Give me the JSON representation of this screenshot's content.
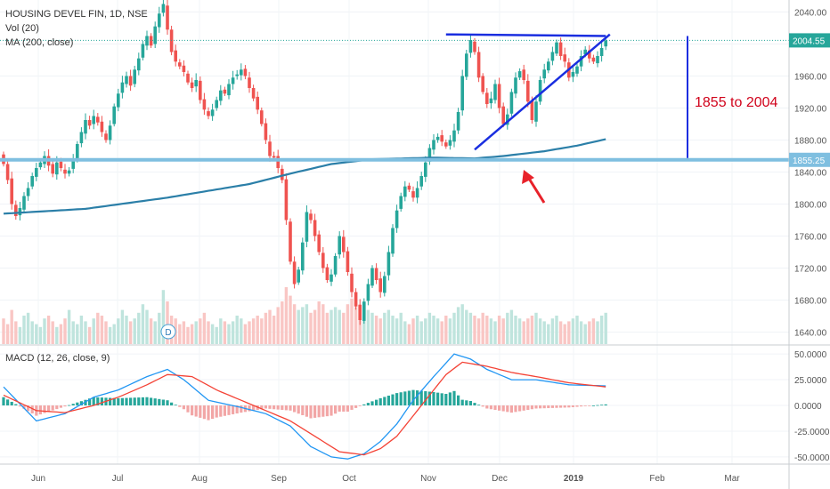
{
  "header": {
    "symbol_line": "HOUSING DEVEL FIN, 1D, NSE",
    "volume_line": "Vol (20)",
    "ma_line": "MA (200, close)",
    "macd_line": "MACD (12, 26, close, 9)"
  },
  "badges": {
    "dividend": "D"
  },
  "colors": {
    "up": "#26a69a",
    "down": "#ef5350",
    "ma": "#2b7fa8",
    "support": "#7fbfe0",
    "triangle": "#1a2ee0",
    "annotation_text": "#d0021b",
    "arrow": "#e8222a",
    "macd_line": "#2196f3",
    "signal_line": "#f44336"
  },
  "annotation": {
    "range_text": "1855 to 2004"
  },
  "chart_data": [
    {
      "type": "candlestick",
      "panel": "price",
      "x_axis_labels": [
        "Jun",
        "Jul",
        "Aug",
        "Sep",
        "Oct",
        "Nov",
        "Dec",
        "2019",
        "Feb",
        "Mar"
      ],
      "y_ticks": [
        1640,
        1680,
        1720,
        1760,
        1800,
        1840,
        1880,
        1920,
        1960,
        2000,
        2040
      ],
      "ylim": [
        1625,
        2055
      ],
      "markers": {
        "current_price": "2004.55",
        "support_level": "1855.25"
      },
      "closes": [
        1850,
        1830,
        1800,
        1785,
        1795,
        1810,
        1820,
        1835,
        1845,
        1852,
        1860,
        1848,
        1838,
        1852,
        1845,
        1838,
        1842,
        1856,
        1875,
        1890,
        1905,
        1898,
        1910,
        1902,
        1890,
        1880,
        1898,
        1922,
        1938,
        1952,
        1960,
        1948,
        1968,
        1982,
        2000,
        2010,
        1998,
        2022,
        2038,
        2050,
        2018,
        1990,
        1978,
        1972,
        1965,
        1952,
        1945,
        1955,
        1930,
        1918,
        1910,
        1918,
        1930,
        1942,
        1938,
        1950,
        1958,
        1962,
        1968,
        1960,
        1945,
        1932,
        1918,
        1900,
        1880,
        1860,
        1858,
        1845,
        1830,
        1780,
        1728,
        1700,
        1718,
        1752,
        1790,
        1780,
        1760,
        1740,
        1720,
        1705,
        1712,
        1735,
        1760,
        1740,
        1715,
        1690,
        1672,
        1655,
        1678,
        1700,
        1720,
        1705,
        1690,
        1710,
        1740,
        1770,
        1792,
        1810,
        1822,
        1818,
        1808,
        1820,
        1835,
        1852,
        1870,
        1880,
        1884,
        1878,
        1872,
        1880,
        1892,
        1915,
        1960,
        1988,
        2005,
        1990,
        1958,
        1940,
        1925,
        1932,
        1950,
        1920,
        1900,
        1912,
        1940,
        1958,
        1966,
        1955,
        1928,
        1905,
        1928,
        1955,
        1968,
        1978,
        1990,
        2002,
        1985,
        1978,
        1958,
        1965,
        1972,
        1985,
        1993,
        1982,
        1978,
        1985,
        1995,
        2004.55
      ],
      "ma200": [
        {
          "i": 0,
          "v": 1788
        },
        {
          "i": 20,
          "v": 1794
        },
        {
          "i": 40,
          "v": 1808
        },
        {
          "i": 60,
          "v": 1825
        },
        {
          "i": 70,
          "v": 1838
        },
        {
          "i": 80,
          "v": 1850
        },
        {
          "i": 90,
          "v": 1856
        },
        {
          "i": 105,
          "v": 1858
        },
        {
          "i": 115,
          "v": 1857
        },
        {
          "i": 122,
          "v": 1860
        },
        {
          "i": 132,
          "v": 1866
        },
        {
          "i": 140,
          "v": 1873
        },
        {
          "i": 147,
          "v": 1881
        }
      ],
      "volume": {
        "label": "Vol (20)",
        "relative_values": [
          0.45,
          0.35,
          0.6,
          0.4,
          0.3,
          0.5,
          0.55,
          0.4,
          0.35,
          0.3,
          0.45,
          0.5,
          0.4,
          0.3,
          0.35,
          0.45,
          0.6,
          0.4,
          0.35,
          0.5,
          0.4,
          0.3,
          0.45,
          0.55,
          0.5,
          0.4,
          0.3,
          0.35,
          0.45,
          0.6,
          0.5,
          0.4,
          0.45,
          0.55,
          0.7,
          0.6,
          0.45,
          0.4,
          0.55,
          0.95,
          0.75,
          0.5,
          0.45,
          0.35,
          0.4,
          0.3,
          0.35,
          0.4,
          0.45,
          0.55,
          0.4,
          0.35,
          0.3,
          0.45,
          0.4,
          0.35,
          0.4,
          0.5,
          0.45,
          0.35,
          0.4,
          0.45,
          0.5,
          0.45,
          0.55,
          0.6,
          0.5,
          0.65,
          0.75,
          1.0,
          0.85,
          0.7,
          0.6,
          0.65,
          0.7,
          0.55,
          0.6,
          0.75,
          0.7,
          0.55,
          0.6,
          0.65,
          0.6,
          0.55,
          0.7,
          0.8,
          0.65,
          0.7,
          0.75,
          0.6,
          0.55,
          0.5,
          0.45,
          0.55,
          0.6,
          0.5,
          0.45,
          0.55,
          0.4,
          0.35,
          0.45,
          0.5,
          0.4,
          0.45,
          0.55,
          0.5,
          0.45,
          0.4,
          0.5,
          0.45,
          0.55,
          0.65,
          0.7,
          0.6,
          0.55,
          0.5,
          0.45,
          0.55,
          0.5,
          0.45,
          0.4,
          0.5,
          0.45,
          0.55,
          0.6,
          0.5,
          0.45,
          0.4,
          0.45,
          0.5,
          0.55,
          0.45,
          0.4,
          0.35,
          0.45,
          0.5,
          0.4,
          0.35,
          0.4,
          0.45,
          0.5,
          0.4,
          0.35,
          0.4,
          0.45,
          0.4,
          0.5,
          0.55
        ]
      },
      "trendlines": [
        {
          "name": "resistance",
          "from": {
            "i": 108,
            "v": 2012
          },
          "to": {
            "i": 147,
            "v": 2010
          }
        },
        {
          "name": "rising-support",
          "from": {
            "i": 115,
            "v": 1868
          },
          "to": {
            "i": 148,
            "v": 2012
          }
        },
        {
          "name": "support-level",
          "value": 1855.25
        }
      ]
    },
    {
      "type": "line",
      "panel": "macd",
      "y_ticks": [
        50,
        25,
        0,
        -25,
        -50
      ],
      "y_tick_labels": [
        "50.0000",
        "25.0000",
        "0.0000",
        "-25.0000",
        "-50.0000"
      ],
      "ylim": [
        -57,
        57
      ],
      "series": [
        {
          "name": "macd",
          "points": [
            {
              "i": 0,
              "v": 18
            },
            {
              "i": 8,
              "v": -15
            },
            {
              "i": 15,
              "v": -8
            },
            {
              "i": 22,
              "v": 8
            },
            {
              "i": 28,
              "v": 15
            },
            {
              "i": 35,
              "v": 28
            },
            {
              "i": 40,
              "v": 35
            },
            {
              "i": 44,
              "v": 25
            },
            {
              "i": 50,
              "v": 5
            },
            {
              "i": 58,
              "v": -2
            },
            {
              "i": 64,
              "v": -8
            },
            {
              "i": 70,
              "v": -20
            },
            {
              "i": 75,
              "v": -40
            },
            {
              "i": 80,
              "v": -50
            },
            {
              "i": 84,
              "v": -52
            },
            {
              "i": 88,
              "v": -47
            },
            {
              "i": 92,
              "v": -35
            },
            {
              "i": 96,
              "v": -18
            },
            {
              "i": 100,
              "v": 5
            },
            {
              "i": 105,
              "v": 28
            },
            {
              "i": 110,
              "v": 50
            },
            {
              "i": 114,
              "v": 45
            },
            {
              "i": 118,
              "v": 35
            },
            {
              "i": 124,
              "v": 25
            },
            {
              "i": 130,
              "v": 25
            },
            {
              "i": 138,
              "v": 20
            },
            {
              "i": 147,
              "v": 19
            }
          ]
        },
        {
          "name": "signal",
          "points": [
            {
              "i": 0,
              "v": 10
            },
            {
              "i": 8,
              "v": -5
            },
            {
              "i": 15,
              "v": -7
            },
            {
              "i": 22,
              "v": 0
            },
            {
              "i": 28,
              "v": 8
            },
            {
              "i": 35,
              "v": 20
            },
            {
              "i": 40,
              "v": 30
            },
            {
              "i": 46,
              "v": 28
            },
            {
              "i": 52,
              "v": 15
            },
            {
              "i": 58,
              "v": 5
            },
            {
              "i": 64,
              "v": -5
            },
            {
              "i": 70,
              "v": -15
            },
            {
              "i": 76,
              "v": -30
            },
            {
              "i": 82,
              "v": -45
            },
            {
              "i": 88,
              "v": -48
            },
            {
              "i": 92,
              "v": -42
            },
            {
              "i": 96,
              "v": -30
            },
            {
              "i": 100,
              "v": -10
            },
            {
              "i": 104,
              "v": 10
            },
            {
              "i": 108,
              "v": 30
            },
            {
              "i": 112,
              "v": 42
            },
            {
              "i": 118,
              "v": 38
            },
            {
              "i": 124,
              "v": 32
            },
            {
              "i": 130,
              "v": 28
            },
            {
              "i": 138,
              "v": 22
            },
            {
              "i": 147,
              "v": 18
            }
          ]
        }
      ]
    }
  ]
}
